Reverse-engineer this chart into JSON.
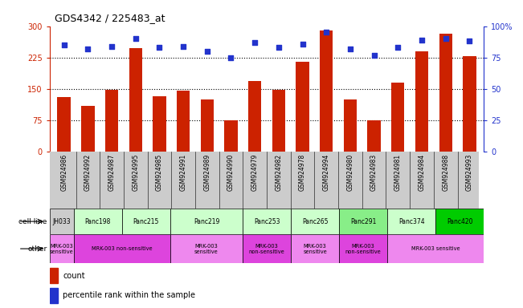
{
  "title": "GDS4342 / 225483_at",
  "samples": [
    "GSM924986",
    "GSM924992",
    "GSM924987",
    "GSM924995",
    "GSM924985",
    "GSM924991",
    "GSM924989",
    "GSM924990",
    "GSM924979",
    "GSM924982",
    "GSM924978",
    "GSM924994",
    "GSM924980",
    "GSM924983",
    "GSM924981",
    "GSM924984",
    "GSM924988",
    "GSM924993"
  ],
  "counts": [
    130,
    110,
    148,
    248,
    132,
    146,
    126,
    75,
    170,
    148,
    215,
    290,
    125,
    75,
    165,
    240,
    283,
    228
  ],
  "percentiles": [
    85,
    82,
    84,
    90,
    83,
    84,
    80,
    75,
    87,
    83,
    86,
    95,
    82,
    77,
    83,
    89,
    90,
    88
  ],
  "ylim_left": [
    0,
    300
  ],
  "ylim_right": [
    0,
    100
  ],
  "yticks_left": [
    0,
    75,
    150,
    225,
    300
  ],
  "yticks_right": [
    0,
    25,
    50,
    75,
    100
  ],
  "bar_color": "#cc2200",
  "dot_color": "#2233cc",
  "sample_bg": "#cccccc",
  "cell_lines": [
    {
      "label": "JH033",
      "start": 0,
      "end": 1,
      "color": "#cccccc"
    },
    {
      "label": "Panc198",
      "start": 1,
      "end": 3,
      "color": "#ccffcc"
    },
    {
      "label": "Panc215",
      "start": 3,
      "end": 5,
      "color": "#ccffcc"
    },
    {
      "label": "Panc219",
      "start": 5,
      "end": 8,
      "color": "#ccffcc"
    },
    {
      "label": "Panc253",
      "start": 8,
      "end": 10,
      "color": "#ccffcc"
    },
    {
      "label": "Panc265",
      "start": 10,
      "end": 12,
      "color": "#ccffcc"
    },
    {
      "label": "Panc291",
      "start": 12,
      "end": 14,
      "color": "#88ee88"
    },
    {
      "label": "Panc374",
      "start": 14,
      "end": 16,
      "color": "#ccffcc"
    },
    {
      "label": "Panc420",
      "start": 16,
      "end": 18,
      "color": "#00cc00"
    }
  ],
  "other_labels": [
    {
      "label": "MRK-003\nsensitive",
      "start": 0,
      "end": 1,
      "color": "#ee88ee"
    },
    {
      "label": "MRK-003 non-sensitive",
      "start": 1,
      "end": 5,
      "color": "#dd44dd"
    },
    {
      "label": "MRK-003\nsensitive",
      "start": 5,
      "end": 8,
      "color": "#ee88ee"
    },
    {
      "label": "MRK-003\nnon-sensitive",
      "start": 8,
      "end": 10,
      "color": "#dd44dd"
    },
    {
      "label": "MRK-003\nsensitive",
      "start": 10,
      "end": 12,
      "color": "#ee88ee"
    },
    {
      "label": "MRK-003\nnon-sensitive",
      "start": 12,
      "end": 14,
      "color": "#dd44dd"
    },
    {
      "label": "MRK-003 sensitive",
      "start": 14,
      "end": 18,
      "color": "#ee88ee"
    }
  ]
}
